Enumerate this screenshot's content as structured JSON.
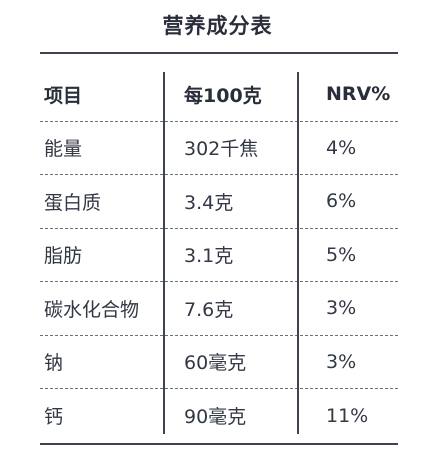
{
  "title": "营养成分表",
  "header": {
    "item": "项目",
    "per100": "每100克",
    "nrv": "NRV%"
  },
  "rows": [
    {
      "item": "能量",
      "per100": "302千焦",
      "nrv": "4%"
    },
    {
      "item": "蛋白质",
      "per100": "3.4克",
      "nrv": "6%"
    },
    {
      "item": "脂肪",
      "per100": "3.1克",
      "nrv": "5%"
    },
    {
      "item": "碳水化合物",
      "per100": "7.6克",
      "nrv": "3%"
    },
    {
      "item": "钠",
      "per100": "60毫克",
      "nrv": "3%"
    },
    {
      "item": "钙",
      "per100": "90毫克",
      "nrv": "11%"
    }
  ]
}
